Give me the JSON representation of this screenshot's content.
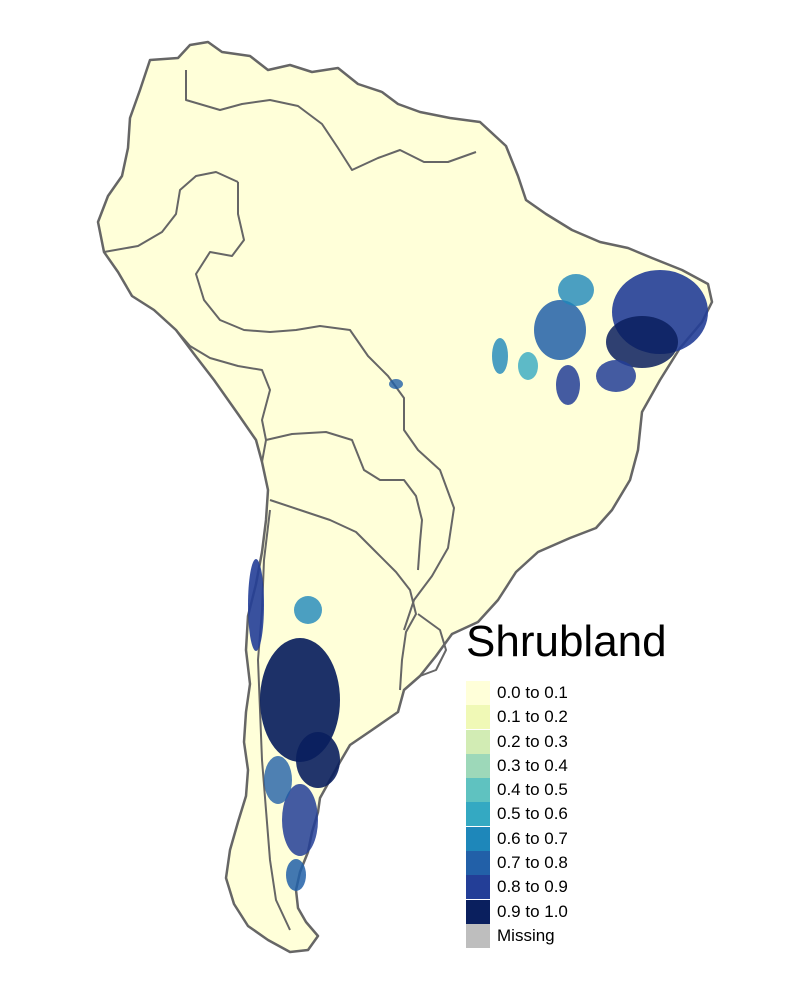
{
  "legend": {
    "title": "Shrubland",
    "items": [
      {
        "label": "0.0 to 0.1",
        "color": "#ffffd9"
      },
      {
        "label": "0.1 to 0.2",
        "color": "#f0f9b6"
      },
      {
        "label": "0.2 to 0.3",
        "color": "#d2ecb4"
      },
      {
        "label": "0.3 to 0.4",
        "color": "#9dd8b9"
      },
      {
        "label": "0.4 to 0.5",
        "color": "#5fc2c0"
      },
      {
        "label": "0.5 to 0.6",
        "color": "#34a9c2"
      },
      {
        "label": "0.6 to 0.7",
        "color": "#1e87ba"
      },
      {
        "label": "0.7 to 0.8",
        "color": "#2260a8"
      },
      {
        "label": "0.8 to 0.9",
        "color": "#233e97"
      },
      {
        "label": "0.9 to 1.0",
        "color": "#0a1f5e"
      },
      {
        "label": "Missing",
        "color": "#bebebe"
      }
    ]
  },
  "map": {
    "land_color": "#ffffd9",
    "border_color": "#666666",
    "high_class_regions": [
      "northeast-brazil",
      "central-chile",
      "patagonia-argentina"
    ]
  }
}
